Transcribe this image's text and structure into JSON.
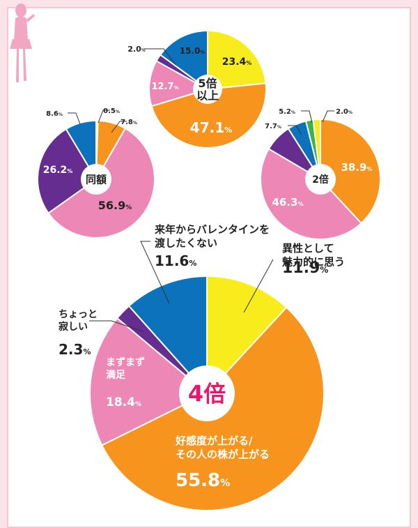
{
  "chart_data": [
    {
      "type": "pie",
      "center_label": "5倍\n以上",
      "slices": [
        {
          "label": "",
          "value": 23.4,
          "value_text": "23.4",
          "color": "#f8ec1c"
        },
        {
          "label": "",
          "value": 47.1,
          "value_text": "47.1",
          "color": "#f7941d"
        },
        {
          "label": "",
          "value": 12.7,
          "value_text": "12.7",
          "color": "#ed87b6"
        },
        {
          "label": "",
          "value": 2.0,
          "value_text": "2.0",
          "color": "#662d91"
        },
        {
          "label": "",
          "value": 15.0,
          "value_text": "15.0",
          "color": "#0b72bb"
        }
      ]
    },
    {
      "type": "pie",
      "center_label": "同額",
      "slices": [
        {
          "label": "",
          "value": 0.5,
          "value_text": "0.5",
          "color": "#f8ec1c"
        },
        {
          "label": "",
          "value": 7.8,
          "value_text": "7.8",
          "color": "#f7941d"
        },
        {
          "label": "",
          "value": 56.9,
          "value_text": "56.9",
          "color": "#ed87b6"
        },
        {
          "label": "",
          "value": 26.2,
          "value_text": "26.2",
          "color": "#662d91"
        },
        {
          "label": "",
          "value": 8.6,
          "value_text": "8.6",
          "color": "#0b72bb"
        }
      ]
    },
    {
      "type": "pie",
      "center_label": "2倍",
      "slices": [
        {
          "label": "",
          "value": 38.9,
          "value_text": "38.9",
          "color": "#f7941d"
        },
        {
          "label": "",
          "value": 46.3,
          "value_text": "46.3",
          "color": "#ed87b6"
        },
        {
          "label": "",
          "value": 7.7,
          "value_text": "7.7",
          "color": "#662d91"
        },
        {
          "label": "",
          "value": 5.2,
          "value_text": "5.2",
          "color": "#0b72bb"
        },
        {
          "label": "",
          "value": 2.0,
          "value_text": "2.0",
          "color": "#39b54a"
        },
        {
          "label": "",
          "value": 2.0,
          "value_text": "2.0",
          "color": "#f8ec1c"
        }
      ]
    },
    {
      "type": "pie",
      "center_label": "4倍",
      "slices": [
        {
          "label": "異性として\n魅力的に思う",
          "value": 11.9,
          "value_text": "11.9",
          "color": "#f8ec1c"
        },
        {
          "label": "好感度が上がる/\nその人の株が上がる",
          "value": 55.8,
          "value_text": "55.8",
          "color": "#f7941d"
        },
        {
          "label": "まずまず\n満足",
          "value": 18.4,
          "value_text": "18.4",
          "color": "#ed87b6"
        },
        {
          "label": "ちょっと\n寂しい",
          "value": 2.3,
          "value_text": "2.3",
          "color": "#662d91"
        },
        {
          "label": "来年からバレンタインを\n渡したくない",
          "value": 11.6,
          "value_text": "11.6",
          "color": "#0b72bb"
        }
      ]
    }
  ],
  "percent_sign": "%",
  "colors": {
    "accent": "#e8176e",
    "frame": "#f6c7d3",
    "silhouette": "#f3a6c2"
  }
}
